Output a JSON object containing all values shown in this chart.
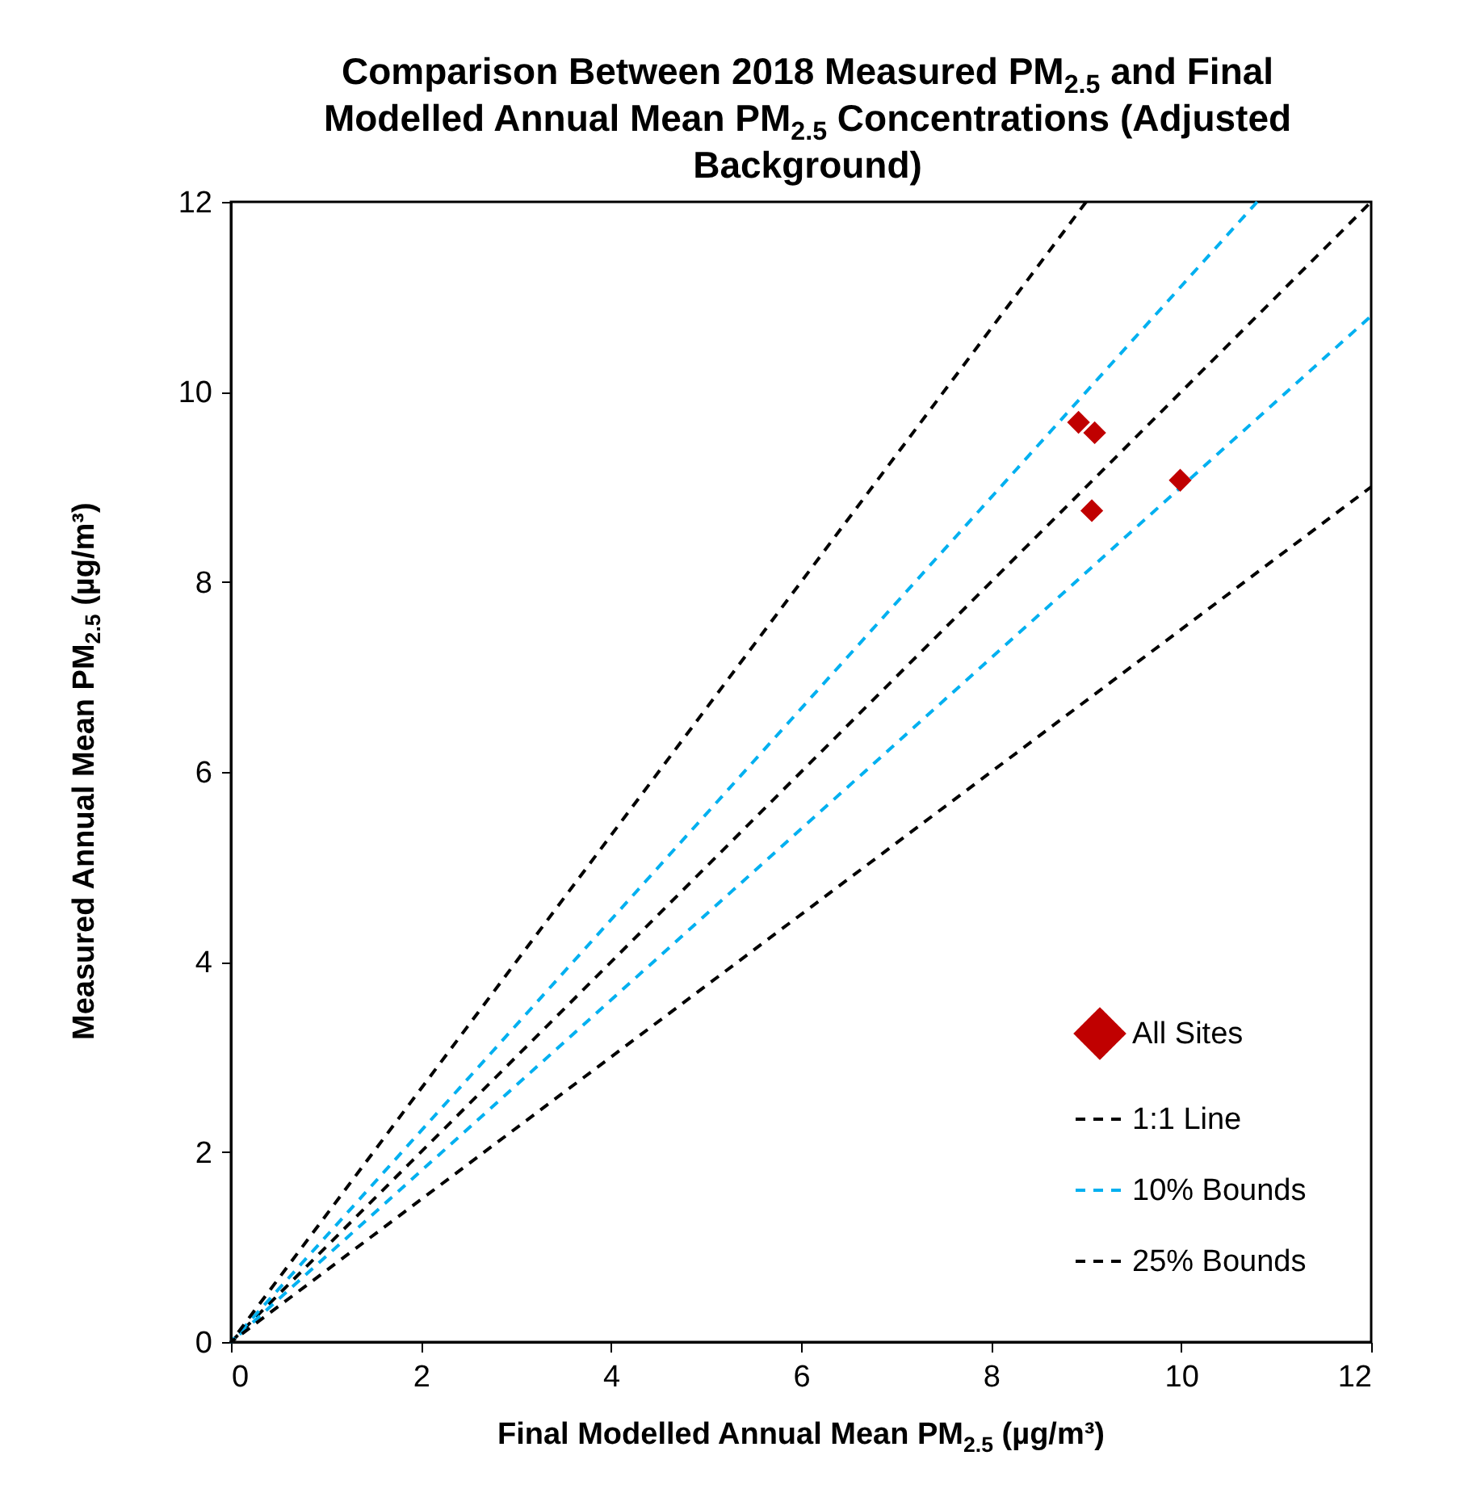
{
  "chart_data": {
    "type": "scatter",
    "title": "Comparison Between 2018 Measured PM$_{2.5}$ and Final Modelled Annual Mean PM$_{2.5}$ Concentrations (Adjusted Background)",
    "xlabel": "Final Modelled Annual Mean PM$_{2.5}$ (µg/m³)",
    "ylabel": "Measured Annual Mean PM$_{2.5}$ (µg/m³)",
    "xlim": [
      0,
      12
    ],
    "ylim": [
      0,
      12
    ],
    "xticks": [
      0,
      2,
      4,
      6,
      8,
      10,
      12
    ],
    "yticks": [
      0,
      2,
      4,
      6,
      8,
      10,
      12
    ],
    "legend": "bottom right",
    "series": [
      {
        "name": "All Sites",
        "marker": "diamond",
        "color": "#c00000",
        "x": [
          8.92,
          9.09,
          9.06,
          9.99
        ],
        "values": [
          9.68,
          9.57,
          8.75,
          9.07
        ]
      },
      {
        "name": "1:1 Line",
        "type": "line",
        "line_style": "dashed",
        "color": "#000000",
        "x": [
          0,
          12
        ],
        "values": [
          0,
          12
        ]
      },
      {
        "name": "10% Bounds",
        "type": "line",
        "line_style": "dashed",
        "color": "#00b0f0",
        "x": [
          10.8,
          0,
          12
        ],
        "values": [
          12,
          0,
          10.8
        ]
      },
      {
        "name": "25% Bounds",
        "type": "line",
        "line_style": "dashed",
        "color": "#000000",
        "x": [
          9,
          0,
          12
        ],
        "values": [
          12,
          0,
          9
        ]
      }
    ]
  }
}
